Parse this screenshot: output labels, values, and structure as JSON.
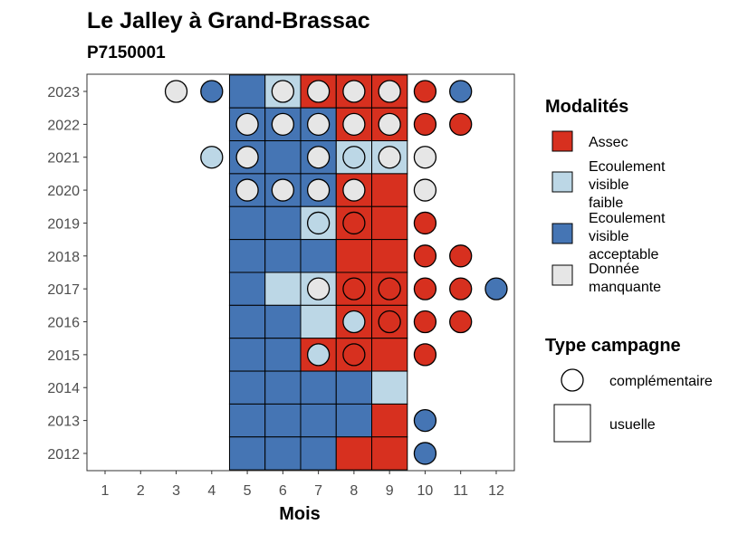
{
  "chart_data": {
    "type": "heatmap",
    "title": "Le Jalley à Grand-Brassac",
    "subtitle": "P7150001",
    "xlabel": "Mois",
    "ylabel": "",
    "x_ticks": [
      "1",
      "2",
      "3",
      "4",
      "5",
      "6",
      "7",
      "8",
      "9",
      "10",
      "11",
      "12"
    ],
    "y_ticks": [
      2012,
      2013,
      2014,
      2015,
      2016,
      2017,
      2018,
      2019,
      2020,
      2021,
      2022,
      2023
    ],
    "colors": {
      "Assec": "#d7301f",
      "Ecoulement visible faible": "#bcd7e6",
      "Ecoulement visible acceptable": "#4575b4",
      "Donnée manquante": "#e6e6e6"
    },
    "legend_modalites": {
      "title": "Modalités",
      "items": [
        {
          "key": "Assec",
          "lines": [
            "Assec"
          ]
        },
        {
          "key": "Ecoulement visible faible",
          "lines": [
            "Ecoulement",
            "visible",
            "faible"
          ]
        },
        {
          "key": "Ecoulement visible acceptable",
          "lines": [
            "Ecoulement",
            "visible",
            "acceptable"
          ]
        },
        {
          "key": "Donnée manquante",
          "lines": [
            "Donnée",
            "manquante"
          ]
        }
      ]
    },
    "legend_campagne": {
      "title": "Type campagne",
      "items": [
        {
          "shape": "circle",
          "label": "complémentaire"
        },
        {
          "shape": "square",
          "label": "usuelle"
        }
      ]
    },
    "usuelle": [
      [
        2023,
        5,
        "Ecoulement visible acceptable"
      ],
      [
        2023,
        6,
        "Ecoulement visible faible"
      ],
      [
        2023,
        7,
        "Assec"
      ],
      [
        2023,
        8,
        "Assec"
      ],
      [
        2023,
        9,
        "Assec"
      ],
      [
        2022,
        5,
        "Ecoulement visible acceptable"
      ],
      [
        2022,
        6,
        "Ecoulement visible acceptable"
      ],
      [
        2022,
        7,
        "Ecoulement visible acceptable"
      ],
      [
        2022,
        8,
        "Assec"
      ],
      [
        2022,
        9,
        "Assec"
      ],
      [
        2021,
        5,
        "Ecoulement visible acceptable"
      ],
      [
        2021,
        6,
        "Ecoulement visible acceptable"
      ],
      [
        2021,
        7,
        "Ecoulement visible acceptable"
      ],
      [
        2021,
        8,
        "Ecoulement visible faible"
      ],
      [
        2021,
        9,
        "Ecoulement visible faible"
      ],
      [
        2020,
        5,
        "Ecoulement visible acceptable"
      ],
      [
        2020,
        6,
        "Ecoulement visible acceptable"
      ],
      [
        2020,
        7,
        "Ecoulement visible acceptable"
      ],
      [
        2020,
        8,
        "Assec"
      ],
      [
        2020,
        9,
        "Assec"
      ],
      [
        2019,
        5,
        "Ecoulement visible acceptable"
      ],
      [
        2019,
        6,
        "Ecoulement visible acceptable"
      ],
      [
        2019,
        7,
        "Ecoulement visible faible"
      ],
      [
        2019,
        8,
        "Assec"
      ],
      [
        2019,
        9,
        "Assec"
      ],
      [
        2018,
        5,
        "Ecoulement visible acceptable"
      ],
      [
        2018,
        6,
        "Ecoulement visible acceptable"
      ],
      [
        2018,
        7,
        "Ecoulement visible acceptable"
      ],
      [
        2018,
        8,
        "Assec"
      ],
      [
        2018,
        9,
        "Assec"
      ],
      [
        2017,
        5,
        "Ecoulement visible acceptable"
      ],
      [
        2017,
        6,
        "Ecoulement visible faible"
      ],
      [
        2017,
        7,
        "Ecoulement visible faible"
      ],
      [
        2017,
        8,
        "Assec"
      ],
      [
        2017,
        9,
        "Assec"
      ],
      [
        2016,
        5,
        "Ecoulement visible acceptable"
      ],
      [
        2016,
        6,
        "Ecoulement visible acceptable"
      ],
      [
        2016,
        7,
        "Ecoulement visible faible"
      ],
      [
        2016,
        8,
        "Assec"
      ],
      [
        2016,
        9,
        "Assec"
      ],
      [
        2015,
        5,
        "Ecoulement visible acceptable"
      ],
      [
        2015,
        6,
        "Ecoulement visible acceptable"
      ],
      [
        2015,
        7,
        "Assec"
      ],
      [
        2015,
        8,
        "Assec"
      ],
      [
        2015,
        9,
        "Assec"
      ],
      [
        2014,
        5,
        "Ecoulement visible acceptable"
      ],
      [
        2014,
        6,
        "Ecoulement visible acceptable"
      ],
      [
        2014,
        7,
        "Ecoulement visible acceptable"
      ],
      [
        2014,
        8,
        "Ecoulement visible acceptable"
      ],
      [
        2014,
        9,
        "Ecoulement visible faible"
      ],
      [
        2013,
        5,
        "Ecoulement visible acceptable"
      ],
      [
        2013,
        6,
        "Ecoulement visible acceptable"
      ],
      [
        2013,
        7,
        "Ecoulement visible acceptable"
      ],
      [
        2013,
        8,
        "Ecoulement visible acceptable"
      ],
      [
        2013,
        9,
        "Assec"
      ],
      [
        2012,
        5,
        "Ecoulement visible acceptable"
      ],
      [
        2012,
        6,
        "Ecoulement visible acceptable"
      ],
      [
        2012,
        7,
        "Ecoulement visible acceptable"
      ],
      [
        2012,
        8,
        "Assec"
      ],
      [
        2012,
        9,
        "Assec"
      ]
    ],
    "complementaire": [
      [
        2023,
        3,
        "Donnée manquante"
      ],
      [
        2023,
        4,
        "Ecoulement visible acceptable"
      ],
      [
        2023,
        6,
        "Donnée manquante"
      ],
      [
        2023,
        7,
        "Donnée manquante"
      ],
      [
        2023,
        8,
        "Donnée manquante"
      ],
      [
        2023,
        9,
        "Donnée manquante"
      ],
      [
        2023,
        10,
        "Assec"
      ],
      [
        2023,
        11,
        "Ecoulement visible acceptable"
      ],
      [
        2022,
        5,
        "Donnée manquante"
      ],
      [
        2022,
        6,
        "Donnée manquante"
      ],
      [
        2022,
        7,
        "Donnée manquante"
      ],
      [
        2022,
        8,
        "Donnée manquante"
      ],
      [
        2022,
        9,
        "Donnée manquante"
      ],
      [
        2022,
        10,
        "Assec"
      ],
      [
        2022,
        11,
        "Assec"
      ],
      [
        2021,
        4,
        "Ecoulement visible faible"
      ],
      [
        2021,
        5,
        "Donnée manquante"
      ],
      [
        2021,
        7,
        "Donnée manquante"
      ],
      [
        2021,
        8,
        "Ecoulement visible faible"
      ],
      [
        2021,
        9,
        "Donnée manquante"
      ],
      [
        2021,
        10,
        "Donnée manquante"
      ],
      [
        2020,
        5,
        "Donnée manquante"
      ],
      [
        2020,
        6,
        "Donnée manquante"
      ],
      [
        2020,
        7,
        "Donnée manquante"
      ],
      [
        2020,
        8,
        "Donnée manquante"
      ],
      [
        2020,
        10,
        "Donnée manquante"
      ],
      [
        2019,
        7,
        "Ecoulement visible faible"
      ],
      [
        2019,
        8,
        "Assec"
      ],
      [
        2019,
        10,
        "Assec"
      ],
      [
        2018,
        10,
        "Assec"
      ],
      [
        2018,
        11,
        "Assec"
      ],
      [
        2017,
        7,
        "Donnée manquante"
      ],
      [
        2017,
        8,
        "Assec"
      ],
      [
        2017,
        9,
        "Assec"
      ],
      [
        2017,
        10,
        "Assec"
      ],
      [
        2017,
        11,
        "Assec"
      ],
      [
        2017,
        12,
        "Ecoulement visible acceptable"
      ],
      [
        2016,
        8,
        "Ecoulement visible faible"
      ],
      [
        2016,
        9,
        "Assec"
      ],
      [
        2016,
        10,
        "Assec"
      ],
      [
        2016,
        11,
        "Assec"
      ],
      [
        2015,
        7,
        "Ecoulement visible faible"
      ],
      [
        2015,
        8,
        "Assec"
      ],
      [
        2015,
        10,
        "Assec"
      ],
      [
        2013,
        10,
        "Ecoulement visible acceptable"
      ],
      [
        2012,
        10,
        "Ecoulement visible acceptable"
      ]
    ]
  }
}
